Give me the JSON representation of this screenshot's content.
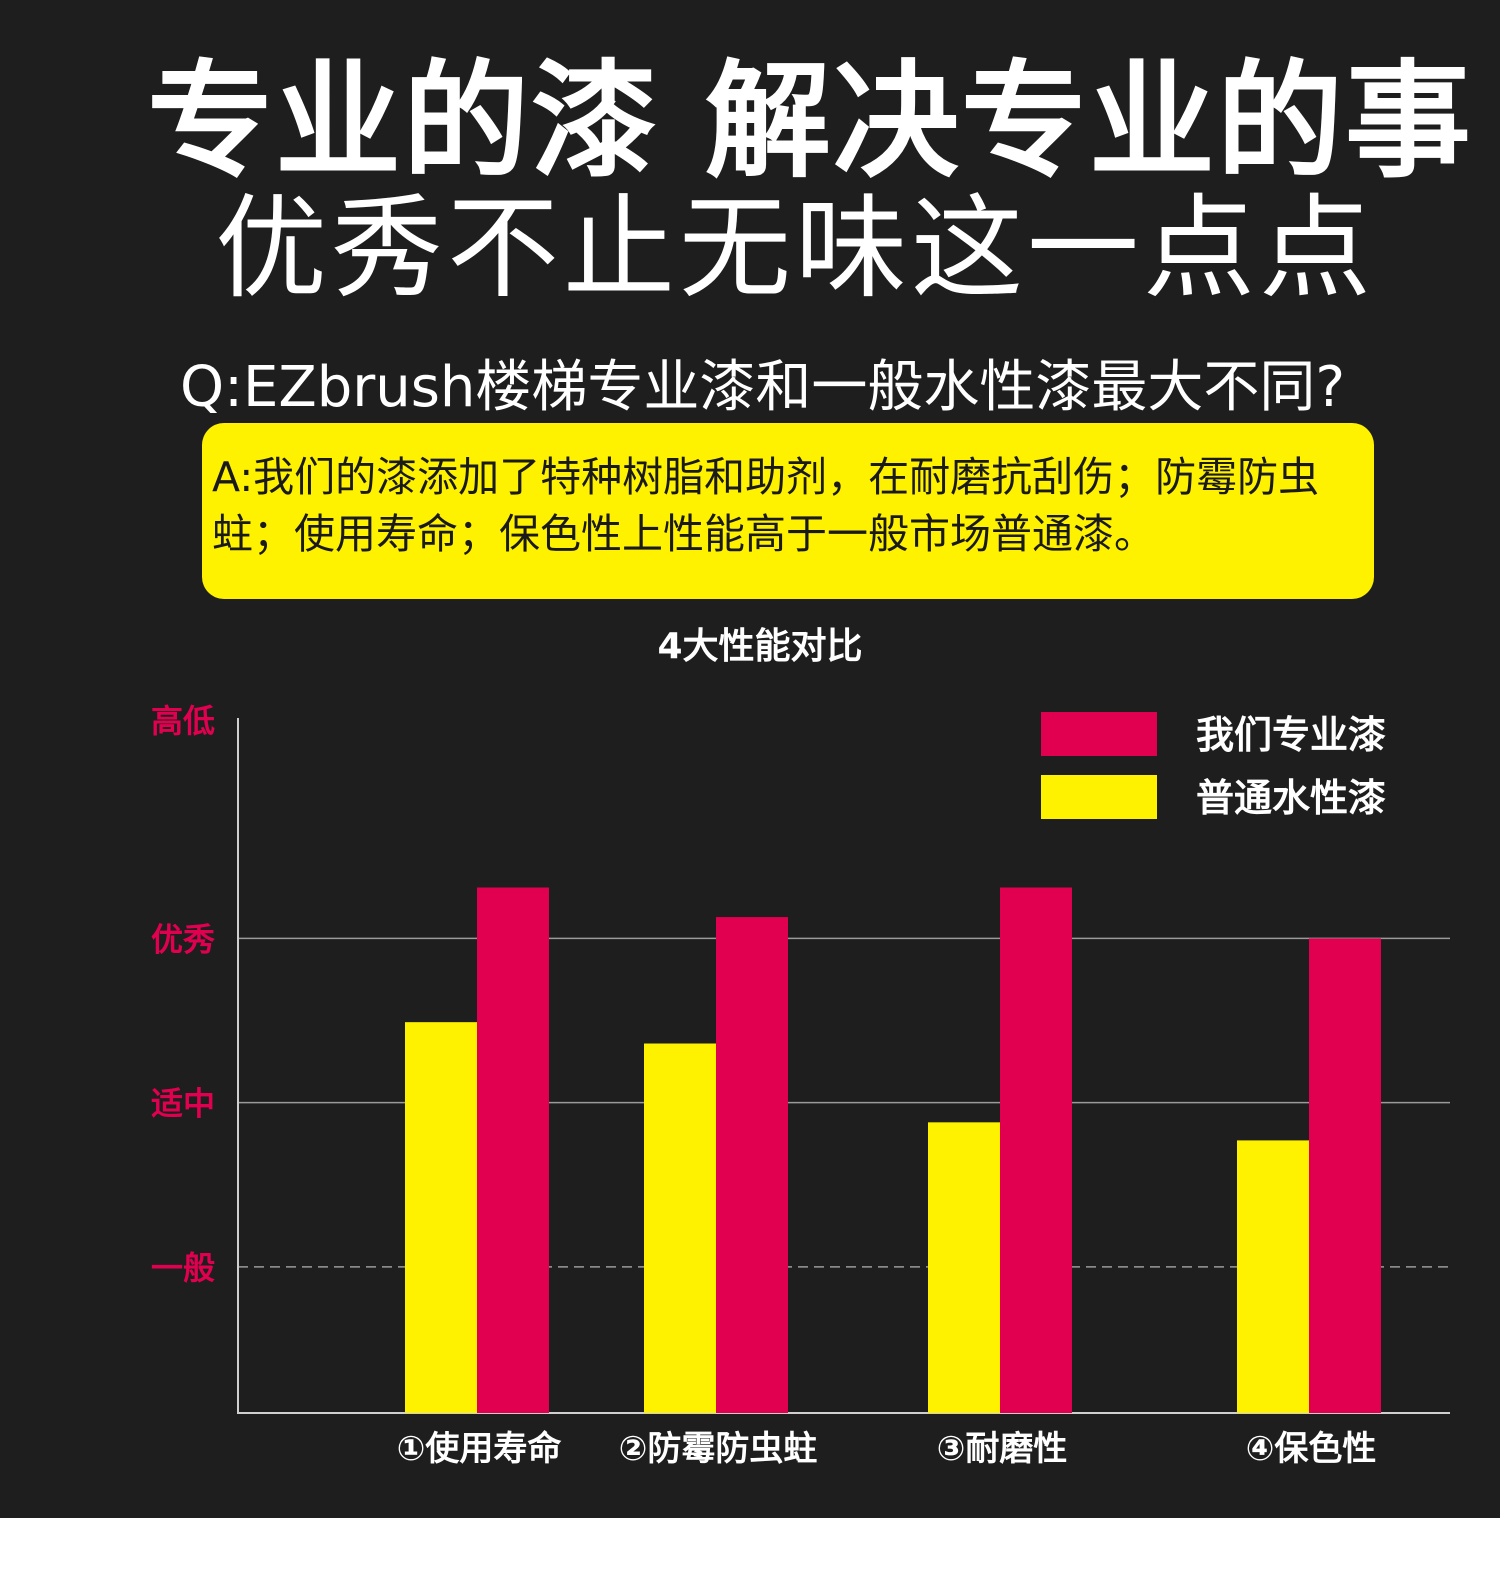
{
  "headline": {
    "title": "专业的漆 解决专业的事",
    "subtitle": "优秀不止无味这一点点"
  },
  "qa": {
    "question": "Q:EZbrush楼梯专业漆和一般水性漆最大不同?",
    "answer": "A:我们的漆添加了特种树脂和助剂，在耐磨抗刮伤；防霉防虫蛀；使用寿命；保色性上性能高于一般市场普通漆。"
  },
  "colors": {
    "background": "#1e1e1e",
    "pro_red": "#e0004f",
    "normal_yellow": "#fff200",
    "level_label": "#e0004f"
  },
  "chart_data": {
    "type": "bar",
    "title": "4大性能对比",
    "y_levels": [
      "一般",
      "适中",
      "优秀",
      "高低"
    ],
    "y_level_values": [
      1,
      2,
      3,
      4.33
    ],
    "ylim": [
      0.11,
      4.33
    ],
    "categories": [
      "①使用寿命",
      "②防霉防虫蛀",
      "③耐磨性",
      "④保色性"
    ],
    "series": [
      {
        "name": "普通水性漆",
        "color": "#fff200",
        "values": [
          2.49,
          2.36,
          1.88,
          1.77
        ]
      },
      {
        "name": "我们专业漆",
        "color": "#e0004f",
        "values": [
          3.31,
          3.13,
          3.31,
          3.0
        ]
      }
    ],
    "legend_order": [
      "我们专业漆",
      "普通水性漆"
    ],
    "legend_position": "top-right",
    "grid": true
  }
}
